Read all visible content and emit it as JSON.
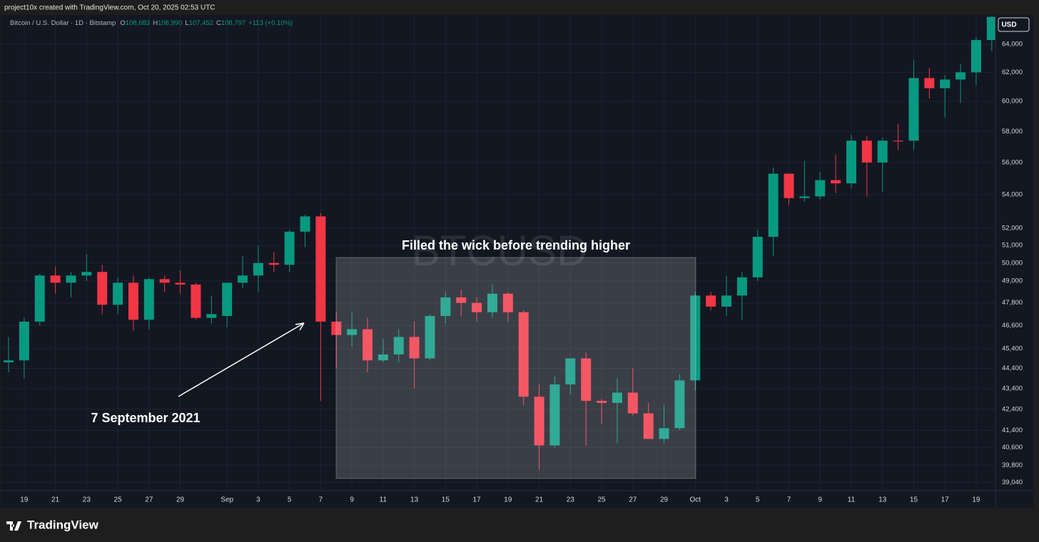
{
  "header": "project10x created with TradingView.com, Oct 20, 2025 02:53 UTC",
  "symbol_line": {
    "name": "Bitcoin / U.S. Dollar · 1D · Bitstamp",
    "ohlc": [
      {
        "key": "O",
        "val": "108,683"
      },
      {
        "key": "H",
        "val": "108,990"
      },
      {
        "key": "L",
        "val": "107,452"
      },
      {
        "key": "C",
        "val": "108,797"
      }
    ],
    "change": "+113 (+0.10%)"
  },
  "currency": "USD",
  "footer": "TradingView",
  "chart_data": {
    "type": "candlestick",
    "watermark": "BTCUSD",
    "annotations": [
      "Filled the wick before trending higher",
      "7 September 2021"
    ],
    "log_scale": true,
    "grid": true,
    "up_color": "#089981",
    "down_color": "#f23645",
    "x": [
      "2021-08-18",
      "2021-08-19",
      "2021-08-20",
      "2021-08-21",
      "2021-08-22",
      "2021-08-23",
      "2021-08-24",
      "2021-08-25",
      "2021-08-26",
      "2021-08-27",
      "2021-08-28",
      "2021-08-29",
      "2021-08-30",
      "2021-08-31",
      "2021-09-01",
      "2021-09-02",
      "2021-09-03",
      "2021-09-04",
      "2021-09-05",
      "2021-09-06",
      "2021-09-07",
      "2021-09-08",
      "2021-09-09",
      "2021-09-10",
      "2021-09-11",
      "2021-09-12",
      "2021-09-13",
      "2021-09-14",
      "2021-09-15",
      "2021-09-16",
      "2021-09-17",
      "2021-09-18",
      "2021-09-19",
      "2021-09-20",
      "2021-09-21",
      "2021-09-22",
      "2021-09-23",
      "2021-09-24",
      "2021-09-25",
      "2021-09-26",
      "2021-09-27",
      "2021-09-28",
      "2021-09-29",
      "2021-09-30",
      "2021-10-01",
      "2021-10-02",
      "2021-10-03",
      "2021-10-04",
      "2021-10-05",
      "2021-10-06",
      "2021-10-07",
      "2021-10-08",
      "2021-10-09",
      "2021-10-10",
      "2021-10-11",
      "2021-10-12",
      "2021-10-13",
      "2021-10-14",
      "2021-10-15",
      "2021-10-16",
      "2021-10-17",
      "2021-10-18",
      "2021-10-19",
      "2021-10-20"
    ],
    "open": [
      44700,
      44800,
      46800,
      49300,
      48900,
      49300,
      49500,
      47700,
      48900,
      46900,
      49100,
      48900,
      48800,
      47000,
      47100,
      48900,
      49300,
      50000,
      49900,
      51800,
      52700,
      46800,
      46100,
      46400,
      44800,
      45100,
      46000,
      44900,
      47100,
      48100,
      47800,
      47300,
      48300,
      47300,
      43000,
      40700,
      43600,
      44900,
      42800,
      42700,
      43200,
      42200,
      41000,
      41500,
      43800,
      48200,
      47600,
      48200,
      49200,
      51500,
      55300,
      53800,
      53900,
      54900,
      54700,
      57400,
      56000,
      57400,
      57400,
      61600,
      60900,
      61500,
      62000,
      64300
    ],
    "high": [
      46000,
      47000,
      49400,
      49800,
      49500,
      50500,
      49900,
      49200,
      49300,
      49200,
      49300,
      49600,
      48900,
      48200,
      48900,
      50400,
      51000,
      50600,
      51900,
      52800,
      52900,
      47300,
      47300,
      47000,
      45900,
      46400,
      46800,
      47200,
      48400,
      48500,
      48100,
      48800,
      48400,
      47400,
      43600,
      44000,
      44900,
      45200,
      42900,
      43900,
      44400,
      42700,
      42600,
      44100,
      48400,
      48400,
      49300,
      49500,
      51900,
      55700,
      55300,
      56100,
      55400,
      56500,
      57800,
      57700,
      57600,
      58500,
      62900,
      62300,
      61800,
      62600,
      64500,
      66900
    ],
    "low": [
      44200,
      43900,
      46600,
      48300,
      48100,
      49000,
      47200,
      47200,
      46300,
      46400,
      48400,
      48300,
      46900,
      46700,
      46500,
      48600,
      48400,
      49500,
      49500,
      50900,
      42800,
      44400,
      45500,
      44200,
      44700,
      44700,
      43400,
      44800,
      46700,
      47100,
      46800,
      47000,
      46800,
      42600,
      39600,
      40600,
      43100,
      40700,
      41700,
      40800,
      42100,
      41000,
      40800,
      41400,
      43300,
      47400,
      47100,
      46900,
      49000,
      50400,
      53400,
      53600,
      53700,
      54100,
      54400,
      53900,
      54200,
      56800,
      56800,
      60200,
      58900,
      59900,
      61100,
      63500
    ],
    "close": [
      44800,
      46800,
      49300,
      48900,
      49300,
      49500,
      47700,
      48900,
      46900,
      49100,
      48900,
      48800,
      47000,
      47200,
      48900,
      49300,
      50000,
      49900,
      51800,
      52700,
      46800,
      46100,
      46400,
      44800,
      45100,
      46000,
      44900,
      47100,
      48100,
      47800,
      47300,
      48300,
      47300,
      43000,
      40700,
      43600,
      44900,
      42800,
      42700,
      43200,
      42200,
      41000,
      41500,
      43800,
      48200,
      47600,
      48200,
      49200,
      51500,
      55300,
      53800,
      53900,
      54900,
      54700,
      57400,
      56000,
      57400,
      57350,
      61600,
      60900,
      61500,
      62000,
      64300,
      66000
    ],
    "ylim": [
      38770,
      66090
    ],
    "yticks": [
      {
        "value": 39040,
        "label": "39,040"
      },
      {
        "value": 39800,
        "label": "39,800"
      },
      {
        "value": 40600,
        "label": "40,600"
      },
      {
        "value": 41400,
        "label": "41,400"
      },
      {
        "value": 42400,
        "label": "42,400"
      },
      {
        "value": 43400,
        "label": "43,400"
      },
      {
        "value": 44400,
        "label": "44,400"
      },
      {
        "value": 45400,
        "label": "45,400"
      },
      {
        "value": 46600,
        "label": "46,600"
      },
      {
        "value": 47800,
        "label": "47,800"
      },
      {
        "value": 49000,
        "label": "49,000"
      },
      {
        "value": 50000,
        "label": "50,000"
      },
      {
        "value": 51000,
        "label": "51,000"
      },
      {
        "value": 52000,
        "label": "52,000"
      },
      {
        "value": 54000,
        "label": "54,000"
      },
      {
        "value": 56000,
        "label": "56,000"
      },
      {
        "value": 58000,
        "label": "58,000"
      },
      {
        "value": 60000,
        "label": "60,000"
      },
      {
        "value": 62000,
        "label": "62,000"
      },
      {
        "value": 64000,
        "label": "64,000"
      }
    ],
    "xticks": [
      {
        "value": "2021-08-19",
        "label": "19"
      },
      {
        "value": "2021-08-21",
        "label": "21"
      },
      {
        "value": "2021-08-23",
        "label": "23"
      },
      {
        "value": "2021-08-25",
        "label": "25"
      },
      {
        "value": "2021-08-27",
        "label": "27"
      },
      {
        "value": "2021-08-29",
        "label": "29"
      },
      {
        "value": "2021-09-01",
        "label": "Sep"
      },
      {
        "value": "2021-09-03",
        "label": "3"
      },
      {
        "value": "2021-09-05",
        "label": "5"
      },
      {
        "value": "2021-09-07",
        "label": "7"
      },
      {
        "value": "2021-09-09",
        "label": "9"
      },
      {
        "value": "2021-09-11",
        "label": "11"
      },
      {
        "value": "2021-09-13",
        "label": "13"
      },
      {
        "value": "2021-09-15",
        "label": "15"
      },
      {
        "value": "2021-09-17",
        "label": "17"
      },
      {
        "value": "2021-09-19",
        "label": "19"
      },
      {
        "value": "2021-09-21",
        "label": "21"
      },
      {
        "value": "2021-09-23",
        "label": "23"
      },
      {
        "value": "2021-09-25",
        "label": "25"
      },
      {
        "value": "2021-09-27",
        "label": "27"
      },
      {
        "value": "2021-09-29",
        "label": "29"
      },
      {
        "value": "2021-10-01",
        "label": "Oct"
      },
      {
        "value": "2021-10-03",
        "label": "3"
      },
      {
        "value": "2021-10-05",
        "label": "5"
      },
      {
        "value": "2021-10-07",
        "label": "7"
      },
      {
        "value": "2021-10-09",
        "label": "9"
      },
      {
        "value": "2021-10-11",
        "label": "11"
      },
      {
        "value": "2021-10-13",
        "label": "13"
      },
      {
        "value": "2021-10-15",
        "label": "15"
      },
      {
        "value": "2021-10-17",
        "label": "17"
      },
      {
        "value": "2021-10-19",
        "label": "19"
      }
    ]
  }
}
